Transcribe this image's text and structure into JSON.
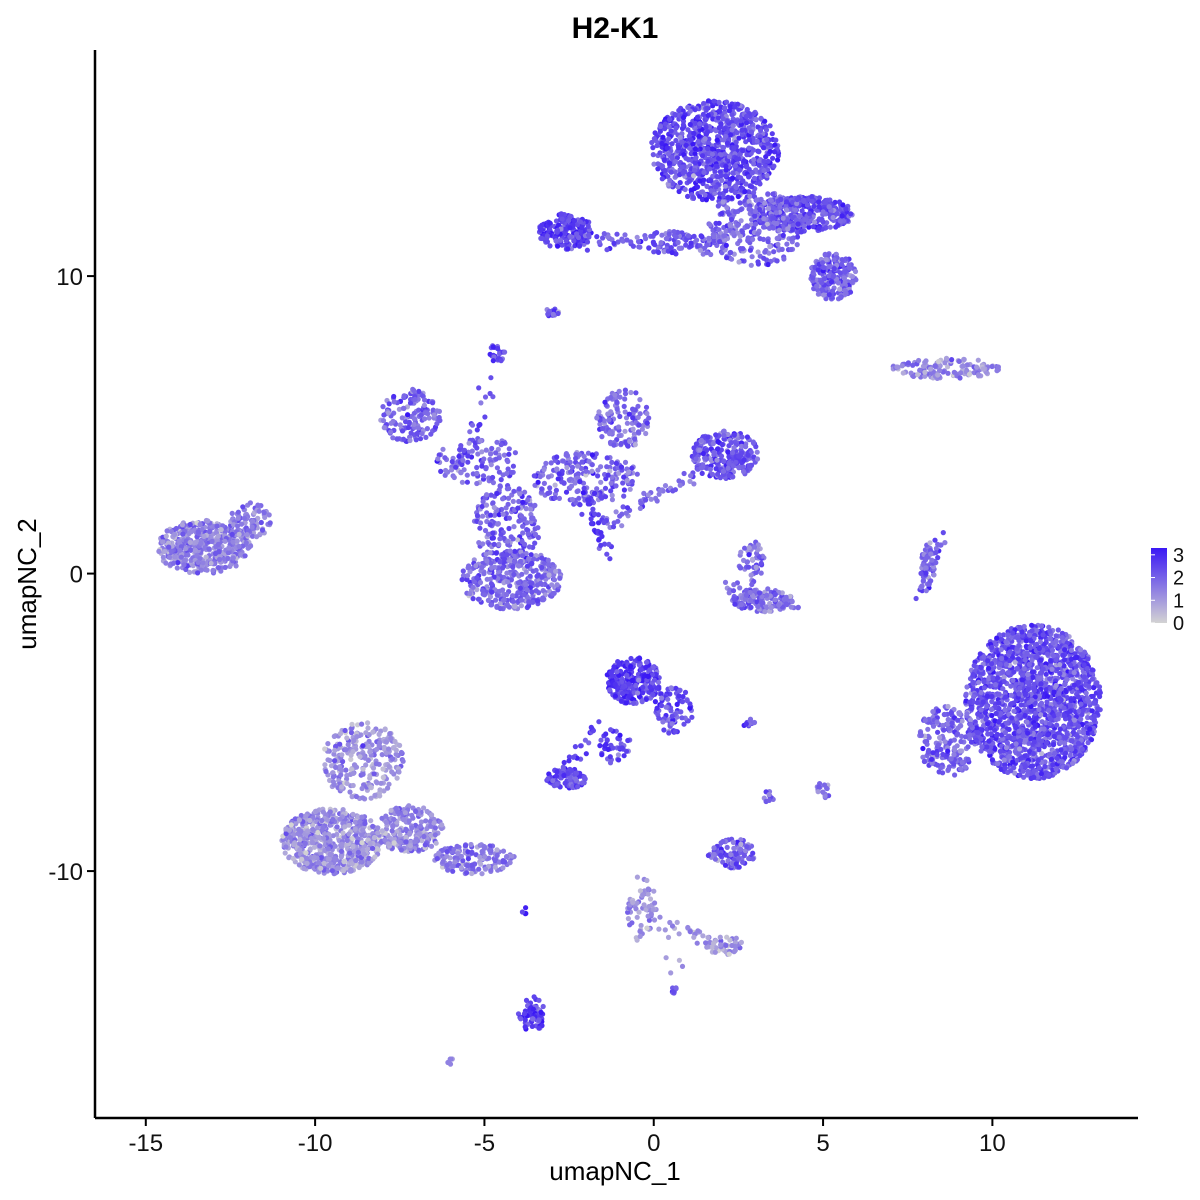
{
  "chart_data": {
    "type": "scatter",
    "title": "H2-K1",
    "xlabel": "umapNC_1",
    "ylabel": "umapNC_2",
    "xlim": [
      -16.5,
      14.3
    ],
    "ylim": [
      -18.3,
      17.6
    ],
    "x_ticks": [
      -15,
      -10,
      -5,
      0,
      5,
      10
    ],
    "x_tick_labels": [
      "-15",
      "-10",
      "-5",
      "0",
      "5",
      "10"
    ],
    "y_ticks": [
      -10,
      0,
      10
    ],
    "y_tick_labels": [
      "-10",
      "0",
      "10"
    ],
    "grid": false,
    "legend": {
      "position": "right",
      "type": "colorbar",
      "labels": [
        "3",
        "2",
        "1",
        "0"
      ],
      "values": [
        3,
        2,
        1,
        0
      ],
      "color_low": "#d3d3d3",
      "color_high": "#3a18f5",
      "range": [
        0,
        3.3
      ]
    },
    "clusters": [
      {
        "cx": 1.8,
        "cy": 14.2,
        "rx": 1.9,
        "ry": 1.7,
        "n": 900,
        "level": 2.4
      },
      {
        "cx": 4.4,
        "cy": 12.1,
        "rx": 1.5,
        "ry": 0.6,
        "n": 350,
        "level": 2.3
      },
      {
        "cx": 5.3,
        "cy": 10.0,
        "rx": 0.7,
        "ry": 0.8,
        "n": 200,
        "level": 2.0
      },
      {
        "cx": 3.0,
        "cy": 11.6,
        "rx": 1.4,
        "ry": 1.3,
        "n": 260,
        "level": 2.0
      },
      {
        "cx": -2.6,
        "cy": 11.5,
        "rx": 0.8,
        "ry": 0.6,
        "n": 180,
        "level": 2.6
      },
      {
        "cx": 0.5,
        "cy": 11.1,
        "rx": 1.2,
        "ry": 0.4,
        "n": 90,
        "level": 2.2
      },
      {
        "cx": -3.0,
        "cy": 8.8,
        "rx": 0.2,
        "ry": 0.15,
        "n": 15,
        "level": 2.0
      },
      {
        "cx": -4.6,
        "cy": 7.4,
        "rx": 0.25,
        "ry": 0.35,
        "n": 25,
        "level": 2.5
      },
      {
        "cx": 8.6,
        "cy": 6.9,
        "rx": 1.6,
        "ry": 0.35,
        "n": 130,
        "level": 1.3
      },
      {
        "cx": -7.2,
        "cy": 5.3,
        "rx": 0.9,
        "ry": 0.9,
        "n": 150,
        "level": 2.0
      },
      {
        "cx": -5.2,
        "cy": 3.8,
        "rx": 1.3,
        "ry": 0.8,
        "n": 110,
        "level": 1.9
      },
      {
        "cx": 2.1,
        "cy": 4.0,
        "rx": 1.0,
        "ry": 0.8,
        "n": 260,
        "level": 2.2
      },
      {
        "cx": -0.9,
        "cy": 5.2,
        "rx": 0.8,
        "ry": 1.0,
        "n": 120,
        "level": 1.8
      },
      {
        "cx": -2.0,
        "cy": 3.2,
        "rx": 1.6,
        "ry": 0.9,
        "n": 200,
        "level": 1.9
      },
      {
        "cx": -4.3,
        "cy": 1.6,
        "rx": 1.0,
        "ry": 1.4,
        "n": 200,
        "level": 2.0
      },
      {
        "cx": -4.2,
        "cy": -0.2,
        "rx": 1.5,
        "ry": 1.0,
        "n": 350,
        "level": 1.9
      },
      {
        "cx": -13.3,
        "cy": 0.9,
        "rx": 1.4,
        "ry": 0.9,
        "n": 480,
        "level": 1.4
      },
      {
        "cx": -11.9,
        "cy": 1.8,
        "rx": 0.6,
        "ry": 0.6,
        "n": 80,
        "level": 1.5
      },
      {
        "cx": 3.2,
        "cy": -0.9,
        "rx": 0.9,
        "ry": 0.4,
        "n": 140,
        "level": 1.8
      },
      {
        "cx": 2.9,
        "cy": 0.4,
        "rx": 0.4,
        "ry": 0.7,
        "n": 50,
        "level": 1.8
      },
      {
        "cx": 8.1,
        "cy": 0.3,
        "rx": 0.2,
        "ry": 0.8,
        "n": 50,
        "level": 2.0
      },
      {
        "cx": 11.2,
        "cy": -4.3,
        "rx": 2.0,
        "ry": 2.6,
        "n": 1700,
        "level": 2.3
      },
      {
        "cx": 8.7,
        "cy": -5.6,
        "rx": 0.9,
        "ry": 1.2,
        "n": 200,
        "level": 1.9
      },
      {
        "cx": -0.6,
        "cy": -3.6,
        "rx": 0.8,
        "ry": 0.8,
        "n": 260,
        "level": 2.7
      },
      {
        "cx": 0.6,
        "cy": -4.6,
        "rx": 0.6,
        "ry": 0.8,
        "n": 80,
        "level": 2.2
      },
      {
        "cx": -1.1,
        "cy": -5.8,
        "rx": 0.5,
        "ry": 0.6,
        "n": 40,
        "level": 2.3
      },
      {
        "cx": -2.6,
        "cy": -6.9,
        "rx": 0.6,
        "ry": 0.35,
        "n": 100,
        "level": 2.4
      },
      {
        "cx": 2.8,
        "cy": -5.0,
        "rx": 0.2,
        "ry": 0.15,
        "n": 12,
        "level": 2.4
      },
      {
        "cx": 2.3,
        "cy": -9.4,
        "rx": 0.7,
        "ry": 0.5,
        "n": 90,
        "level": 2.0
      },
      {
        "cx": 3.4,
        "cy": -7.5,
        "rx": 0.15,
        "ry": 0.2,
        "n": 10,
        "level": 1.8
      },
      {
        "cx": 5.0,
        "cy": -7.3,
        "rx": 0.2,
        "ry": 0.3,
        "n": 15,
        "level": 1.8
      },
      {
        "cx": -8.6,
        "cy": -6.3,
        "rx": 1.2,
        "ry": 1.3,
        "n": 260,
        "level": 1.2
      },
      {
        "cx": -9.5,
        "cy": -9.0,
        "rx": 1.5,
        "ry": 1.1,
        "n": 550,
        "level": 1.2
      },
      {
        "cx": -7.2,
        "cy": -8.6,
        "rx": 1.0,
        "ry": 0.8,
        "n": 200,
        "level": 1.3
      },
      {
        "cx": -5.3,
        "cy": -9.6,
        "rx": 1.2,
        "ry": 0.5,
        "n": 150,
        "level": 1.6
      },
      {
        "cx": -3.6,
        "cy": -14.8,
        "rx": 0.4,
        "ry": 0.6,
        "n": 60,
        "level": 2.6
      },
      {
        "cx": 0.6,
        "cy": -14.0,
        "rx": 0.1,
        "ry": 0.1,
        "n": 8,
        "level": 2.2
      },
      {
        "cx": -6.0,
        "cy": -16.4,
        "rx": 0.1,
        "ry": 0.1,
        "n": 6,
        "level": 1.8
      },
      {
        "cx": 2.1,
        "cy": -12.5,
        "rx": 0.6,
        "ry": 0.3,
        "n": 40,
        "level": 1.0
      },
      {
        "cx": -0.4,
        "cy": -11.5,
        "rx": 0.4,
        "ry": 0.9,
        "n": 45,
        "level": 1.1
      },
      {
        "cx": -3.8,
        "cy": -11.3,
        "rx": 0.1,
        "ry": 0.15,
        "n": 4,
        "level": 2.8
      }
    ],
    "bridges": [
      {
        "from": [
          -2.2,
          3.2
        ],
        "to": [
          -1.4,
          0.6
        ],
        "n": 40,
        "level": 2.6
      },
      {
        "from": [
          -5.8,
          3.6
        ],
        "to": [
          -4.6,
          7.0
        ],
        "n": 20,
        "level": 2.0
      },
      {
        "from": [
          -2.8,
          11.3
        ],
        "to": [
          -0.8,
          11.2
        ],
        "n": 30,
        "level": 2.1
      },
      {
        "from": [
          1.4,
          10.8
        ],
        "to": [
          2.5,
          11.8
        ],
        "n": 40,
        "level": 1.8
      },
      {
        "from": [
          -0.4,
          -10.0
        ],
        "to": [
          0.8,
          -13.5
        ],
        "n": 25,
        "level": 1.1
      },
      {
        "from": [
          0.5,
          -11.8
        ],
        "to": [
          2.4,
          -12.7
        ],
        "n": 25,
        "level": 1.2
      },
      {
        "from": [
          -1.8,
          -5.0
        ],
        "to": [
          -2.6,
          -6.8
        ],
        "n": 25,
        "level": 2.4
      },
      {
        "from": [
          7.8,
          -0.6
        ],
        "to": [
          8.5,
          1.2
        ],
        "n": 25,
        "level": 2.0
      },
      {
        "from": [
          -1.5,
          1.6
        ],
        "to": [
          1.6,
          3.6
        ],
        "n": 60,
        "level": 1.9
      },
      {
        "from": [
          2.0,
          -0.3
        ],
        "to": [
          4.3,
          -1.1
        ],
        "n": 30,
        "level": 1.8
      }
    ]
  }
}
